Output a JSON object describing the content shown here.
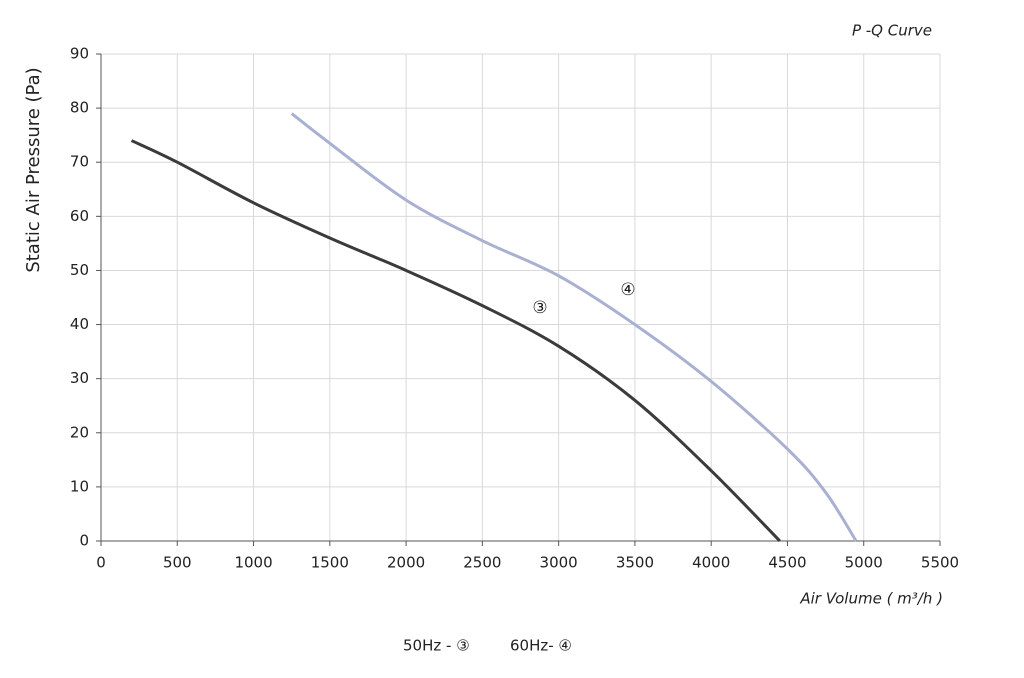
{
  "chart_data": {
    "type": "line",
    "title": "P -Q Curve",
    "xlabel": "Air Volume ( m³/h )",
    "ylabel": "Static Air Pressure  (Pa)",
    "xlim": [
      0,
      5500
    ],
    "xticks": [
      0,
      500,
      1000,
      1500,
      2000,
      2500,
      3000,
      3500,
      4000,
      4500,
      5000,
      5500
    ],
    "ylim": [
      0,
      90
    ],
    "yticks": [
      0,
      10,
      20,
      30,
      40,
      50,
      60,
      70,
      80,
      90
    ],
    "grid": true,
    "series": [
      {
        "name": "50Hz - ③",
        "color": "#3b3b3b",
        "x": [
          200,
          500,
          1000,
          1500,
          2000,
          2500,
          3000,
          3500,
          4000,
          4450
        ],
        "values": [
          74,
          70,
          62.5,
          56,
          50,
          43.5,
          36,
          26,
          13,
          0
        ]
      },
      {
        "name": "60Hz- ④",
        "color": "#aab0d2",
        "x": [
          1250,
          1500,
          2000,
          2500,
          3000,
          3500,
          4000,
          4500,
          4750,
          4950
        ],
        "values": [
          79,
          73.5,
          63,
          55.5,
          49,
          40,
          29.5,
          17,
          9,
          0
        ]
      }
    ],
    "annotations": [
      "③",
      "④"
    ]
  }
}
